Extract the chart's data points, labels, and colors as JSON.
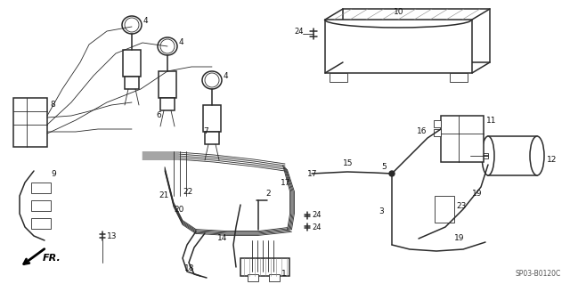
{
  "background_color": "#ffffff",
  "diagram_code": "SP03-B0120C",
  "line_color": "#2a2a2a",
  "text_color": "#111111",
  "font_size": 6.5,
  "figsize": [
    6.4,
    3.19
  ],
  "dpi": 100
}
